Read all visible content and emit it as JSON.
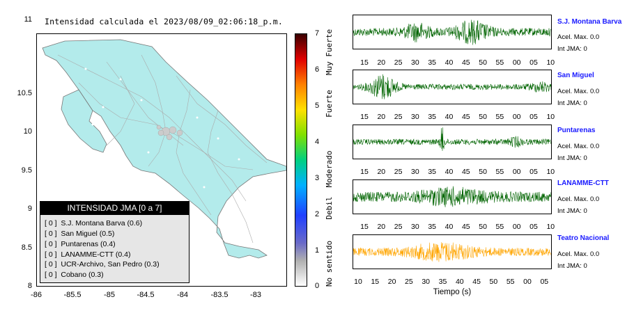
{
  "map": {
    "title": "Intensidad calculada el 2023/08/09_02:06:18_p.m.",
    "y_ticks": [
      "11",
      "10.5",
      "10",
      "9.5",
      "9",
      "8.5",
      "8"
    ],
    "x_ticks": [
      "-86",
      "-85.5",
      "-85",
      "-84.5",
      "-84",
      "-83.5",
      "-83"
    ],
    "land_color": "#b3ebeb",
    "legend": {
      "title": "INTENSIDAD JMA [0 a 7]",
      "rows": [
        {
          "level": "[ 0 ]",
          "station": "S.J. Montana Barva (0.6)"
        },
        {
          "level": "[ 0 ]",
          "station": "San Miguel (0.5)"
        },
        {
          "level": "[ 0 ]",
          "station": "Puntarenas (0.4)"
        },
        {
          "level": "[ 0 ]",
          "station": "LANAMME-CTT (0.4)"
        },
        {
          "level": "[ 0 ]",
          "station": "UCR-Archivo, San Pedro (0.3)"
        },
        {
          "level": "[ 0 ]",
          "station": "Cobano (0.3)"
        }
      ]
    }
  },
  "colorbar": {
    "ticks": [
      "7",
      "6",
      "5",
      "4",
      "3",
      "2",
      "1",
      "0"
    ],
    "words": [
      "Muy Fuerte",
      "Fuerte",
      "Moderado",
      "Debil",
      "No sentido"
    ]
  },
  "traces": {
    "xlabel": "Tiempo (s)",
    "stations": [
      {
        "name": "S.J. Montana Barva",
        "acel": "Acel. Max. 0.0",
        "int": "Int JMA: 0",
        "color": "#006400",
        "ticks": [
          "15",
          "20",
          "25",
          "30",
          "35",
          "40",
          "45",
          "50",
          "55",
          "00",
          "05",
          "10"
        ]
      },
      {
        "name": "San Miguel",
        "acel": "Acel. Max. 0.0",
        "int": "Int JMA: 0",
        "color": "#006400",
        "ticks": [
          "15",
          "20",
          "25",
          "30",
          "35",
          "40",
          "45",
          "50",
          "55",
          "00",
          "05",
          "10"
        ]
      },
      {
        "name": "Puntarenas",
        "acel": "Acel. Max. 0.0",
        "int": "Int JMA: 0",
        "color": "#006400",
        "ticks": [
          "15",
          "20",
          "25",
          "30",
          "35",
          "40",
          "45",
          "50",
          "55",
          "00",
          "05",
          "10"
        ]
      },
      {
        "name": "LANAMME-CTT",
        "acel": "Acel. Max. 0.0",
        "int": "Int JMA: 0",
        "color": "#006400",
        "ticks": [
          "15",
          "20",
          "25",
          "30",
          "35",
          "40",
          "45",
          "50",
          "55",
          "00",
          "05",
          "10"
        ]
      },
      {
        "name": "Teatro Nacional",
        "acel": "Acel. Max. 0.0",
        "int": "Int JMA: 0",
        "color": "#ffa500",
        "ticks": [
          "10",
          "15",
          "20",
          "25",
          "30",
          "35",
          "40",
          "45",
          "50",
          "55",
          "00",
          "05"
        ]
      }
    ]
  }
}
